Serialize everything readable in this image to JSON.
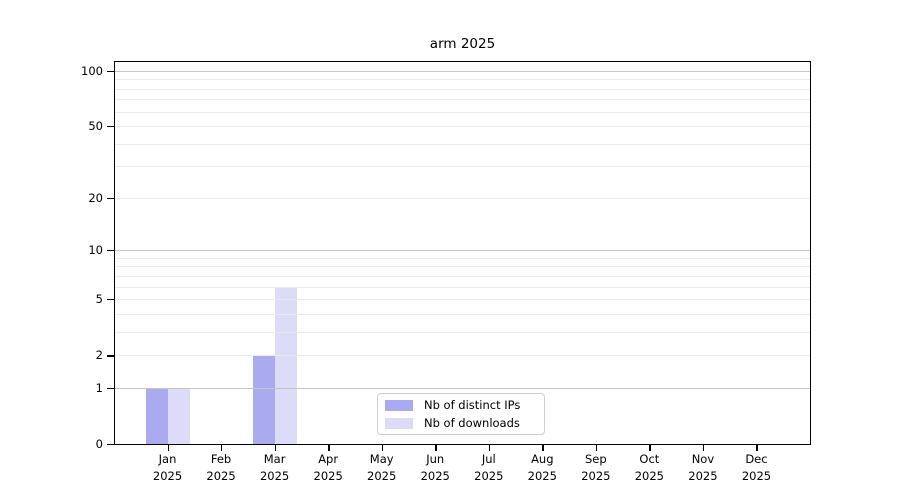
{
  "title": "arm 2025",
  "chart_data": {
    "type": "bar",
    "title": "arm 2025",
    "scale": "log10(1+y)",
    "ylim": [
      0,
      113
    ],
    "grid": "horizontal",
    "legend_position": "inside-bottom-center",
    "categories": [
      "Jan",
      "Feb",
      "Mar",
      "Apr",
      "May",
      "Jun",
      "Jul",
      "Aug",
      "Sep",
      "Oct",
      "Nov",
      "Dec"
    ],
    "category_year": "2025",
    "yticks": [
      0,
      1,
      2,
      5,
      10,
      20,
      50,
      100
    ],
    "major_gridlines": [
      1,
      10,
      100
    ],
    "minor_gridlines": [
      2,
      3,
      4,
      5,
      6,
      7,
      8,
      9,
      20,
      30,
      40,
      50,
      60,
      70,
      80,
      90
    ],
    "series": [
      {
        "name": "Nb of distinct IPs",
        "color": "#aaaaf0",
        "values": [
          1,
          0,
          2,
          0,
          0,
          0,
          0,
          0,
          0,
          0,
          0,
          0
        ]
      },
      {
        "name": "Nb of downloads",
        "color": "#dcdcf8",
        "values": [
          1,
          0,
          6,
          0,
          0,
          0,
          0,
          0,
          0,
          0,
          0,
          0
        ]
      }
    ],
    "style": {
      "grid_minor_color": "#ebebeb",
      "grid_major_color": "#c6c6c6",
      "spine_color": "#000000",
      "legend_border_color": "#cfcfcf",
      "background": "#ffffff"
    }
  }
}
